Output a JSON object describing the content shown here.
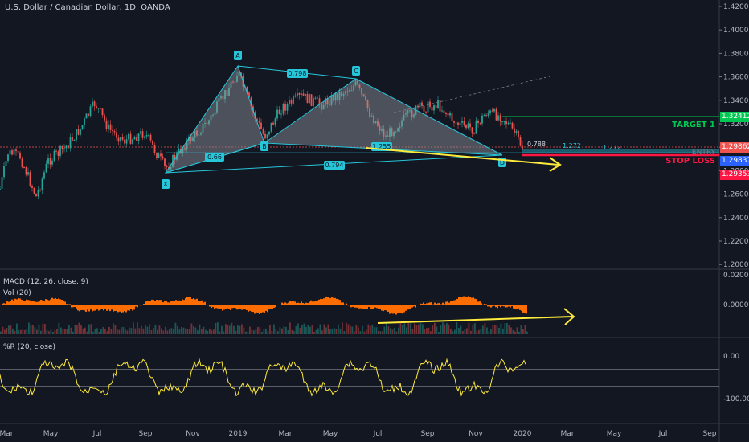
{
  "chart_title": "U.S. Dollar / Canadian Dollar, 1D, OANDA",
  "price_axis": [
    "1.42000",
    "1.40000",
    "1.38000",
    "1.36000",
    "1.34000",
    "1.32000",
    "1.30000",
    "1.28000",
    "1.26000",
    "1.24000",
    "1.22000",
    "1.20000"
  ],
  "time_axis": [
    "Mar",
    "May",
    "Jul",
    "Sep",
    "Nov",
    "2019",
    "Mar",
    "May",
    "Jul",
    "Sep",
    "Nov",
    "2020",
    "Mar",
    "May",
    "Jul",
    "Sep"
  ],
  "price_tags": {
    "target": "1.32412",
    "current": "1.29862",
    "entry": "1.29837",
    "stop": "1.29353"
  },
  "levels": {
    "target_label": "TARGET 1",
    "entry_label": "ENTRY",
    "stop_label": "STOP LOSS"
  },
  "pattern": {
    "points": [
      "X",
      "A",
      "B",
      "C",
      "D"
    ],
    "ratios": [
      "0.798",
      "0.66",
      "1.255",
      "0.794",
      "0.788",
      "1.272",
      "1.272"
    ]
  },
  "macd": {
    "label": "MACD (12, 26, close, 9)",
    "sub_label": "Vol (20)",
    "axis": [
      "0.02000",
      "0.00000"
    ]
  },
  "willr": {
    "label": "%R (20, close)",
    "axis": [
      "0.00",
      "-100.00"
    ]
  },
  "colors": {
    "background": "#131722",
    "pattern_fill": "#9598a1",
    "pattern_line": "#26c6da",
    "target": "#00c853",
    "stop": "#ff1744",
    "arrow": "#ffeb3b",
    "macd_hist": "#ff6d00",
    "willr_line": "#ffeb3b"
  }
}
